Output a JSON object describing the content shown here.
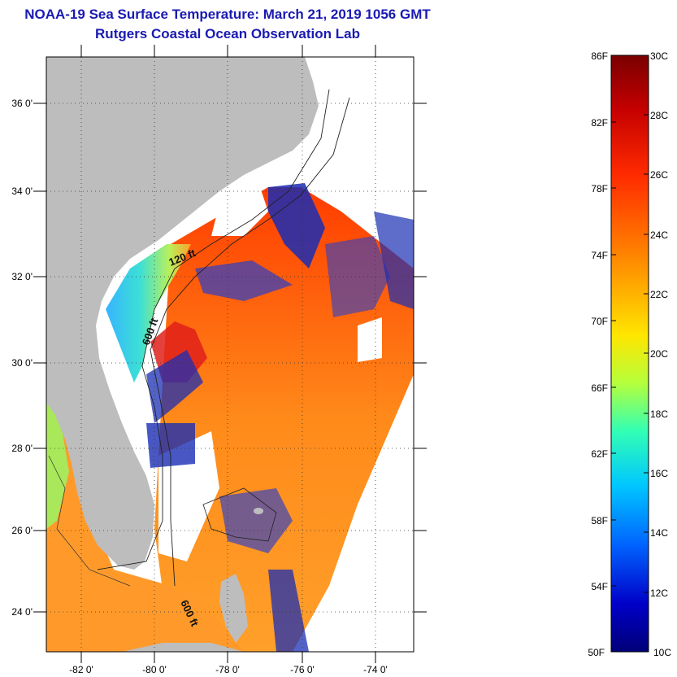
{
  "title": "NOAA-19 Sea Surface Temperature:  March 21, 2019 1056 GMT",
  "subtitle": "Rutgers Coastal Ocean Observation Lab",
  "map": {
    "lat_labels": [
      "36 0'",
      "34 0'",
      "32 0'",
      "30 0'",
      "28 0'",
      "26 0'",
      "24 0'"
    ],
    "lon_labels": [
      "-82 0'",
      "-80 0'",
      "-78 0'",
      "-76 0'",
      "-74 0'"
    ],
    "contour_labels": [
      "120 ft",
      "600 ft",
      "600 ft"
    ],
    "land_color": "#bdbdbd"
  },
  "colorbar": {
    "fahrenheit_labels": [
      "86F",
      "82F",
      "78F",
      "74F",
      "70F",
      "66F",
      "62F",
      "58F",
      "54F",
      "50F"
    ],
    "celsius_labels": [
      "30C",
      "28C",
      "26C",
      "24C",
      "22C",
      "20C",
      "18C",
      "16C",
      "14C",
      "12C",
      "10C"
    ],
    "colors": [
      "#7a0000",
      "#c40000",
      "#ff2a00",
      "#ff7a00",
      "#ffb300",
      "#ffe600",
      "#b4ff3c",
      "#32ffb4",
      "#00c8ff",
      "#0064ff",
      "#0000c8",
      "#000078"
    ]
  }
}
